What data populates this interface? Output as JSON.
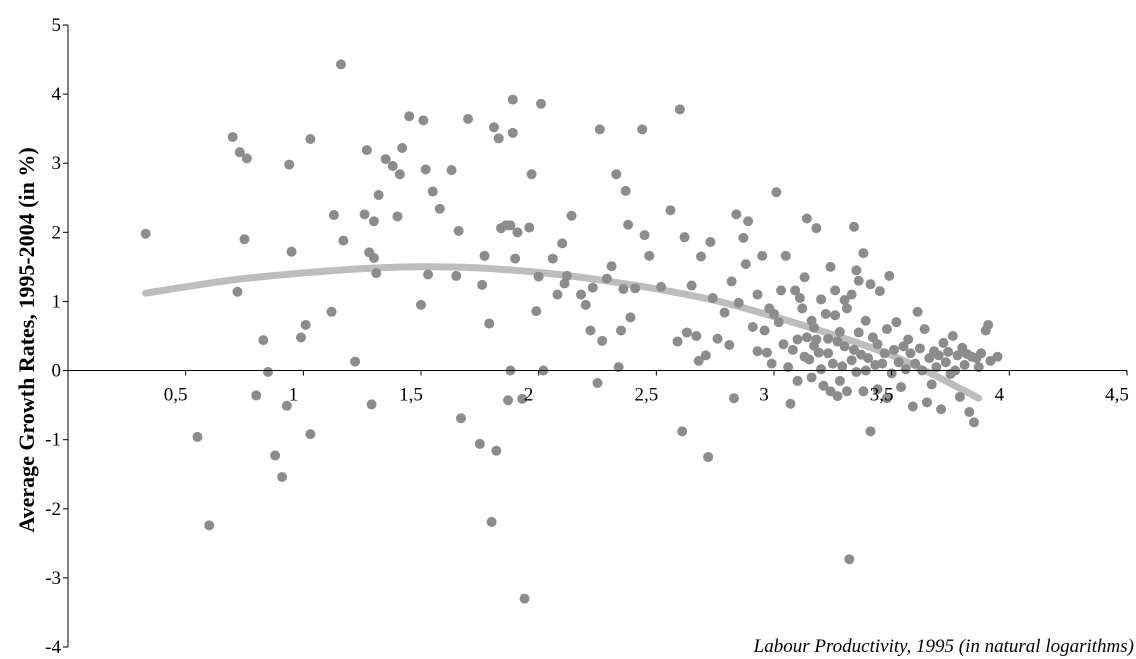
{
  "chart_data": {
    "type": "scatter",
    "title": "",
    "xlabel": "Labour Productivity, 1995 (in natural logarithms)",
    "ylabel": "Average Growth Rates, 1995-2004 (in %)",
    "xlim": [
      0,
      4.5
    ],
    "ylim": [
      -4,
      5
    ],
    "x_ticks": [
      0.5,
      1,
      1.5,
      2,
      2.5,
      3,
      3.5,
      4,
      4.5
    ],
    "x_tick_labels": [
      "0,5",
      "1",
      "1,5",
      "2",
      "2,5",
      "3",
      "3,5",
      "4",
      "4,5"
    ],
    "y_ticks": [
      -4,
      -3,
      -2,
      -1,
      0,
      1,
      2,
      3,
      4,
      5
    ],
    "y_tick_labels": [
      "-4",
      "-3",
      "-2",
      "-1",
      "0",
      "1",
      "2",
      "3",
      "4",
      "5"
    ],
    "grid": false,
    "colors": {
      "points": "#8c8c8c",
      "trend": "#bdbdbd",
      "axis": "#000000"
    },
    "trend": {
      "kind": "quadratic",
      "x_range": [
        0.33,
        3.87
      ],
      "points": [
        [
          0.33,
          1.12
        ],
        [
          0.8,
          1.35
        ],
        [
          1.45,
          1.5
        ],
        [
          2.0,
          1.42
        ],
        [
          2.6,
          1.12
        ],
        [
          3.0,
          0.78
        ],
        [
          3.5,
          0.22
        ],
        [
          3.87,
          -0.4
        ]
      ]
    },
    "points": [
      [
        0.33,
        1.98
      ],
      [
        0.55,
        -0.96
      ],
      [
        0.6,
        -2.24
      ],
      [
        0.7,
        3.38
      ],
      [
        0.72,
        1.14
      ],
      [
        0.73,
        3.16
      ],
      [
        0.75,
        1.9
      ],
      [
        0.76,
        3.07
      ],
      [
        0.8,
        -0.36
      ],
      [
        0.83,
        0.44
      ],
      [
        0.85,
        -0.02
      ],
      [
        0.88,
        -1.23
      ],
      [
        0.91,
        -1.54
      ],
      [
        0.93,
        -0.51
      ],
      [
        0.94,
        2.98
      ],
      [
        0.95,
        1.72
      ],
      [
        0.99,
        0.48
      ],
      [
        1.01,
        0.66
      ],
      [
        1.03,
        3.35
      ],
      [
        1.03,
        -0.92
      ],
      [
        1.12,
        0.85
      ],
      [
        1.13,
        2.25
      ],
      [
        1.16,
        4.43
      ],
      [
        1.17,
        1.88
      ],
      [
        1.22,
        0.13
      ],
      [
        1.26,
        2.26
      ],
      [
        1.27,
        3.19
      ],
      [
        1.28,
        1.71
      ],
      [
        1.29,
        -0.49
      ],
      [
        1.3,
        2.16
      ],
      [
        1.3,
        1.63
      ],
      [
        1.31,
        1.41
      ],
      [
        1.32,
        2.54
      ],
      [
        1.35,
        3.06
      ],
      [
        1.38,
        2.96
      ],
      [
        1.4,
        2.23
      ],
      [
        1.41,
        2.84
      ],
      [
        1.42,
        3.22
      ],
      [
        1.45,
        3.68
      ],
      [
        1.5,
        0.95
      ],
      [
        1.51,
        3.62
      ],
      [
        1.52,
        2.91
      ],
      [
        1.53,
        1.39
      ],
      [
        1.55,
        2.59
      ],
      [
        1.58,
        2.34
      ],
      [
        1.63,
        2.9
      ],
      [
        1.65,
        1.37
      ],
      [
        1.66,
        2.02
      ],
      [
        1.67,
        -0.69
      ],
      [
        1.7,
        3.64
      ],
      [
        1.75,
        -1.06
      ],
      [
        1.76,
        1.24
      ],
      [
        1.77,
        1.66
      ],
      [
        1.79,
        0.68
      ],
      [
        1.8,
        -2.19
      ],
      [
        1.81,
        3.52
      ],
      [
        1.82,
        -1.16
      ],
      [
        1.83,
        3.36
      ],
      [
        1.84,
        2.06
      ],
      [
        1.86,
        2.1
      ],
      [
        1.87,
        -0.43
      ],
      [
        1.88,
        2.1
      ],
      [
        1.88,
        0.0
      ],
      [
        1.89,
        3.92
      ],
      [
        1.89,
        3.44
      ],
      [
        1.9,
        1.62
      ],
      [
        1.91,
        2.0
      ],
      [
        1.93,
        -0.41
      ],
      [
        1.94,
        -3.3
      ],
      [
        1.96,
        2.07
      ],
      [
        1.97,
        2.84
      ],
      [
        1.99,
        0.86
      ],
      [
        2.0,
        1.36
      ],
      [
        2.01,
        3.86
      ],
      [
        2.02,
        0.0
      ],
      [
        2.06,
        1.62
      ],
      [
        2.08,
        1.1
      ],
      [
        2.1,
        1.84
      ],
      [
        2.11,
        1.26
      ],
      [
        2.12,
        1.37
      ],
      [
        2.14,
        2.24
      ],
      [
        2.18,
        1.1
      ],
      [
        2.2,
        0.95
      ],
      [
        2.22,
        0.58
      ],
      [
        2.23,
        1.2
      ],
      [
        2.25,
        -0.18
      ],
      [
        2.26,
        3.49
      ],
      [
        2.27,
        0.43
      ],
      [
        2.29,
        1.33
      ],
      [
        2.31,
        1.51
      ],
      [
        2.33,
        2.84
      ],
      [
        2.34,
        0.05
      ],
      [
        2.35,
        0.58
      ],
      [
        2.36,
        1.18
      ],
      [
        2.37,
        2.6
      ],
      [
        2.38,
        2.11
      ],
      [
        2.39,
        0.77
      ],
      [
        2.41,
        1.19
      ],
      [
        2.44,
        3.49
      ],
      [
        2.45,
        1.96
      ],
      [
        2.47,
        1.66
      ],
      [
        2.52,
        1.21
      ],
      [
        2.56,
        2.32
      ],
      [
        2.59,
        0.42
      ],
      [
        2.6,
        3.78
      ],
      [
        2.61,
        -0.88
      ],
      [
        2.62,
        1.93
      ],
      [
        2.63,
        0.55
      ],
      [
        2.65,
        1.23
      ],
      [
        2.67,
        0.5
      ],
      [
        2.68,
        0.14
      ],
      [
        2.69,
        1.65
      ],
      [
        2.71,
        0.22
      ],
      [
        2.72,
        -1.25
      ],
      [
        2.73,
        1.86
      ],
      [
        2.74,
        1.05
      ],
      [
        2.76,
        0.46
      ],
      [
        2.79,
        0.84
      ],
      [
        2.81,
        0.37
      ],
      [
        2.82,
        1.29
      ],
      [
        2.83,
        -0.4
      ],
      [
        2.84,
        2.26
      ],
      [
        2.85,
        0.98
      ],
      [
        2.87,
        1.92
      ],
      [
        2.88,
        1.54
      ],
      [
        2.89,
        2.16
      ],
      [
        2.91,
        0.63
      ],
      [
        2.93,
        1.1
      ],
      [
        2.93,
        0.28
      ],
      [
        2.95,
        1.66
      ],
      [
        2.96,
        0.58
      ],
      [
        2.97,
        0.26
      ],
      [
        2.98,
        0.9
      ],
      [
        2.99,
        0.1
      ],
      [
        3.0,
        0.82
      ],
      [
        3.01,
        2.58
      ],
      [
        3.02,
        0.7
      ],
      [
        3.03,
        1.16
      ],
      [
        3.04,
        0.38
      ],
      [
        3.05,
        1.66
      ],
      [
        3.06,
        0.05
      ],
      [
        3.07,
        -0.48
      ],
      [
        3.08,
        0.3
      ],
      [
        3.09,
        1.16
      ],
      [
        3.1,
        0.45
      ],
      [
        3.1,
        -0.15
      ],
      [
        3.11,
        1.05
      ],
      [
        3.12,
        0.9
      ],
      [
        3.13,
        0.2
      ],
      [
        3.13,
        1.35
      ],
      [
        3.14,
        0.48
      ],
      [
        3.14,
        2.2
      ],
      [
        3.15,
        0.16
      ],
      [
        3.16,
        -0.1
      ],
      [
        3.16,
        0.72
      ],
      [
        3.17,
        0.62
      ],
      [
        3.17,
        0.36
      ],
      [
        3.18,
        2.06
      ],
      [
        3.18,
        0.45
      ],
      [
        3.19,
        0.26
      ],
      [
        3.2,
        1.03
      ],
      [
        3.2,
        0.02
      ],
      [
        3.21,
        -0.22
      ],
      [
        3.22,
        0.82
      ],
      [
        3.23,
        0.46
      ],
      [
        3.23,
        0.25
      ],
      [
        3.24,
        -0.3
      ],
      [
        3.24,
        1.5
      ],
      [
        3.25,
        0.1
      ],
      [
        3.26,
        0.8
      ],
      [
        3.26,
        1.16
      ],
      [
        3.27,
        -0.37
      ],
      [
        3.27,
        0.42
      ],
      [
        3.28,
        0.56
      ],
      [
        3.28,
        -0.15
      ],
      [
        3.29,
        0.06
      ],
      [
        3.3,
        0.35
      ],
      [
        3.3,
        1.02
      ],
      [
        3.31,
        -0.3
      ],
      [
        3.31,
        0.9
      ],
      [
        3.32,
        -2.73
      ],
      [
        3.33,
        0.15
      ],
      [
        3.33,
        1.1
      ],
      [
        3.34,
        2.08
      ],
      [
        3.34,
        0.3
      ],
      [
        3.35,
        1.45
      ],
      [
        3.35,
        -0.02
      ],
      [
        3.36,
        1.3
      ],
      [
        3.36,
        0.55
      ],
      [
        3.37,
        0.23
      ],
      [
        3.38,
        1.7
      ],
      [
        3.38,
        -0.3
      ],
      [
        3.39,
        0.0
      ],
      [
        3.39,
        0.72
      ],
      [
        3.4,
        0.18
      ],
      [
        3.41,
        -0.88
      ],
      [
        3.41,
        1.25
      ],
      [
        3.42,
        0.48
      ],
      [
        3.43,
        0.08
      ],
      [
        3.44,
        -0.27
      ],
      [
        3.44,
        0.38
      ],
      [
        3.45,
        1.15
      ],
      [
        3.46,
        0.1
      ],
      [
        3.47,
        0.25
      ],
      [
        3.48,
        -0.4
      ],
      [
        3.48,
        0.6
      ],
      [
        3.49,
        1.37
      ],
      [
        3.5,
        -0.04
      ],
      [
        3.51,
        0.3
      ],
      [
        3.52,
        0.7
      ],
      [
        3.53,
        0.12
      ],
      [
        3.54,
        -0.24
      ],
      [
        3.55,
        0.35
      ],
      [
        3.56,
        0.02
      ],
      [
        3.57,
        0.45
      ],
      [
        3.58,
        0.25
      ],
      [
        3.59,
        -0.52
      ],
      [
        3.6,
        0.1
      ],
      [
        3.61,
        0.85
      ],
      [
        3.62,
        0.32
      ],
      [
        3.63,
        0.0
      ],
      [
        3.64,
        0.6
      ],
      [
        3.65,
        -0.46
      ],
      [
        3.66,
        0.18
      ],
      [
        3.67,
        -0.2
      ],
      [
        3.68,
        0.28
      ],
      [
        3.69,
        0.05
      ],
      [
        3.7,
        0.22
      ],
      [
        3.71,
        -0.56
      ],
      [
        3.72,
        0.4
      ],
      [
        3.73,
        0.12
      ],
      [
        3.74,
        0.27
      ],
      [
        3.75,
        -0.05
      ],
      [
        3.76,
        0.5
      ],
      [
        3.77,
        0.0
      ],
      [
        3.78,
        0.22
      ],
      [
        3.79,
        -0.38
      ],
      [
        3.8,
        0.33
      ],
      [
        3.81,
        0.08
      ],
      [
        3.82,
        0.24
      ],
      [
        3.83,
        -0.6
      ],
      [
        3.84,
        0.2
      ],
      [
        3.85,
        -0.75
      ],
      [
        3.86,
        0.18
      ],
      [
        3.87,
        0.05
      ],
      [
        3.88,
        0.25
      ],
      [
        3.9,
        0.58
      ],
      [
        3.91,
        0.66
      ],
      [
        3.92,
        0.14
      ],
      [
        3.95,
        0.2
      ]
    ]
  }
}
